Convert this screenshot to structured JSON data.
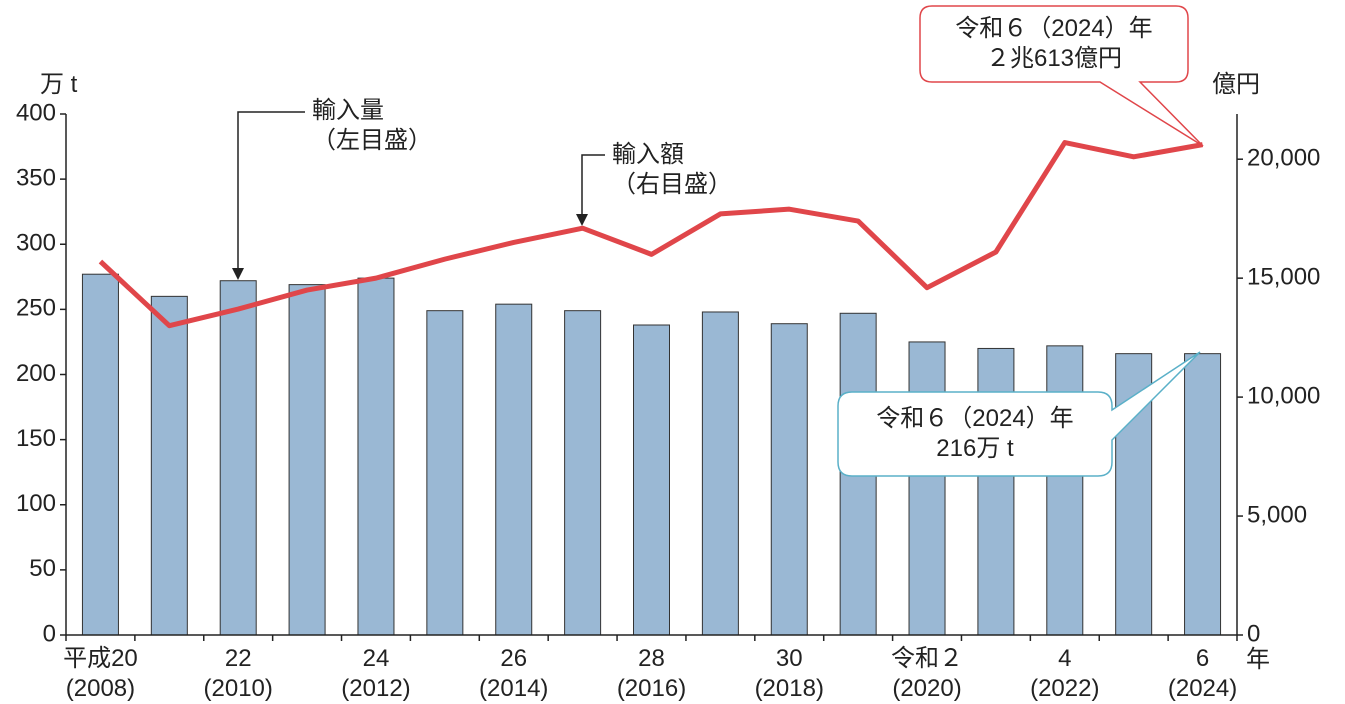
{
  "chart_data": {
    "type": "bar",
    "categories": [
      "平成20\n(2008)",
      null,
      "22\n(2010)",
      null,
      "24\n(2012)",
      null,
      "26\n(2014)",
      null,
      "28\n(2016)",
      null,
      "30\n(2018)",
      null,
      "令和２\n(2020)",
      null,
      "4\n(2022)",
      null,
      "6\n(2024)"
    ],
    "series": [
      {
        "name": "輸入量",
        "type": "bar",
        "color": "#9ab8d4",
        "values": [
          277,
          260,
          272,
          269,
          274,
          249,
          254,
          249,
          238,
          248,
          239,
          247,
          225,
          220,
          222,
          216,
          216
        ]
      },
      {
        "name": "輸入額",
        "type": "line",
        "axis": "y2",
        "color": "#e0464a",
        "values": [
          15700,
          13000,
          13700,
          14500,
          15000,
          15800,
          16500,
          17100,
          16000,
          17700,
          17900,
          17400,
          14600,
          16100,
          20700,
          20100,
          20613
        ]
      }
    ],
    "ylim": [
      0,
      400
    ],
    "yticks": [
      0,
      50,
      100,
      150,
      200,
      250,
      300,
      350,
      400
    ],
    "y2lim": [
      0,
      21900
    ],
    "y2ticks": [
      0,
      {
        "value": 5000,
        "label": "5,000"
      },
      {
        "value": 10000,
        "label": "10,000"
      },
      {
        "value": 15000,
        "label": "15,000"
      },
      {
        "value": 20000,
        "label": "20,000"
      }
    ],
    "y_unit": "万 t",
    "y2_unit": "億円",
    "x_unit": "年",
    "series_notes": [
      "（左目盛）",
      "（右目盛）"
    ],
    "annotations": [
      "令和６（2024）年\n２兆613億円",
      "令和６（2024）年\n216万 t"
    ]
  }
}
